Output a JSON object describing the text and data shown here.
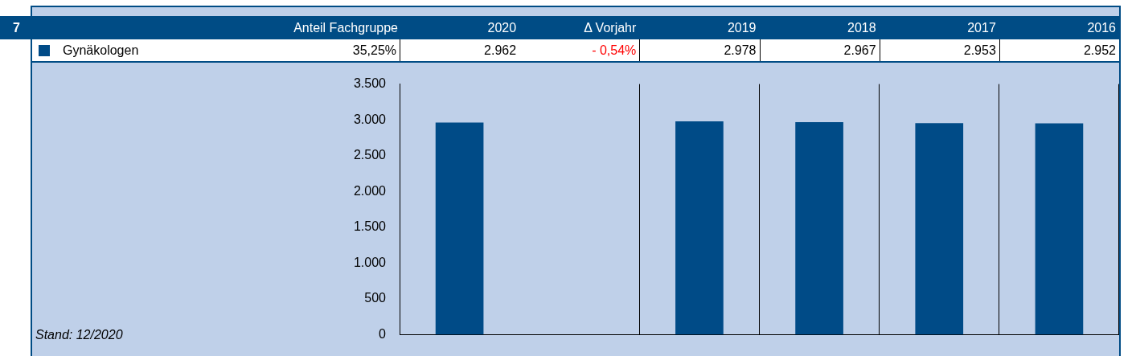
{
  "chart_data": {
    "type": "bar",
    "title": "7",
    "categories": [
      "2020",
      "Δ Vorjahr",
      "2019",
      "2018",
      "2017",
      "2016"
    ],
    "series": [
      {
        "name": "Gynäkologen",
        "color": "#004b87",
        "values": [
          2962,
          null,
          2978,
          2967,
          2953,
          2952
        ],
        "value_labels": [
          "2.962",
          "- 0,54%",
          "2.978",
          "2.967",
          "2.953",
          "2.952"
        ]
      }
    ],
    "ylim": [
      0,
      3500
    ],
    "yticks": [
      {
        "value": 0,
        "label": "0"
      },
      {
        "value": 500,
        "label": "500"
      },
      {
        "value": 1000,
        "label": "1.000"
      },
      {
        "value": 1500,
        "label": "1.500"
      },
      {
        "value": 2000,
        "label": "2.000"
      },
      {
        "value": 2500,
        "label": "2.500"
      },
      {
        "value": 3000,
        "label": "3.000"
      },
      {
        "value": 3500,
        "label": "3.500"
      }
    ],
    "grid": "x",
    "legend": "top left",
    "annotations": [
      "Anteil Fachgruppe",
      "35,25%",
      "Stand: 12/2020"
    ]
  }
}
